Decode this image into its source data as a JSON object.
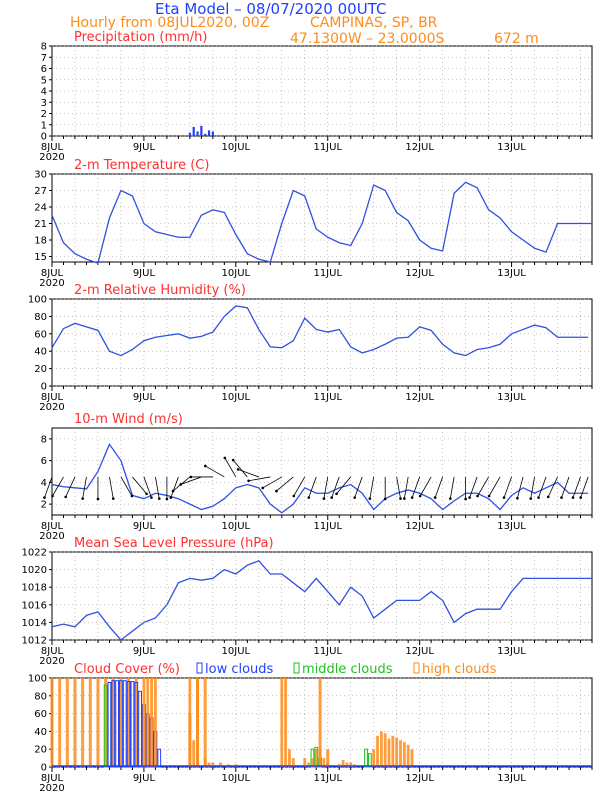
{
  "header": {
    "title": "Eta Model – 08/07/2020 00UTC",
    "subtitle": "Hourly from 08JUL2020, 00Z",
    "location": "CAMPINAS, SP, BR",
    "coords": "47.1300W – 23.0000S",
    "elevation": "672  m"
  },
  "colors": {
    "line": "#3050e0",
    "title": "#ff3030",
    "high": "#ff8c1a",
    "middle": "#20c020",
    "low": "#2040ff",
    "arrow": "#000000"
  },
  "chart_data": [
    {
      "type": "bar",
      "title": "Precipitation (mm/h)",
      "ylim": [
        0,
        8
      ],
      "yticks": [
        0,
        1,
        2,
        3,
        4,
        5,
        6,
        7,
        8
      ],
      "x_day_labels": [
        "8JUL",
        "9JUL",
        "10JUL",
        "11JUL",
        "12JUL",
        "13JUL"
      ],
      "x_year": "2020",
      "x": [
        36,
        37,
        38,
        39,
        40,
        41,
        42
      ],
      "values": [
        0.3,
        0.8,
        0.4,
        0.9,
        0.2,
        0.5,
        0.4
      ]
    },
    {
      "type": "line",
      "title": "2-m Temperature (C)",
      "ylim": [
        14,
        30
      ],
      "yticks": [
        15,
        18,
        21,
        24,
        27,
        30
      ],
      "x_day_labels": [
        "8JUL",
        "9JUL",
        "10JUL",
        "11JUL",
        "12JUL",
        "13JUL"
      ],
      "x_year": "2020",
      "x": [
        0,
        3,
        6,
        9,
        12,
        15,
        18,
        21,
        24,
        27,
        30,
        33,
        36,
        39,
        42,
        45,
        48,
        51,
        54,
        57,
        60,
        63,
        66,
        69,
        72,
        75,
        78,
        81,
        84,
        87,
        90,
        93,
        96,
        99,
        102,
        105,
        108,
        111,
        114,
        117,
        120,
        123,
        126,
        129,
        132,
        135,
        138,
        141
      ],
      "values": [
        22.5,
        17.5,
        15.5,
        14.5,
        13.8,
        22.0,
        27.0,
        26.0,
        21.0,
        19.5,
        19.0,
        18.5,
        18.5,
        22.5,
        23.5,
        23.0,
        19.0,
        15.5,
        14.5,
        14.0,
        21.0,
        27.0,
        26.0,
        20.0,
        18.5,
        17.5,
        17.0,
        21.0,
        28.0,
        27.0,
        23.0,
        21.5,
        18.0,
        16.5,
        16.0,
        26.5,
        28.5,
        27.5,
        23.5,
        22.0,
        19.5,
        18.0,
        16.5,
        15.8,
        21.0,
        21.0,
        21.0,
        21.0
      ]
    },
    {
      "type": "line",
      "title": "2-m Relative Humidity (%)",
      "ylim": [
        0,
        100
      ],
      "yticks": [
        0,
        20,
        40,
        60,
        80,
        100
      ],
      "x_day_labels": [
        "8JUL",
        "9JUL",
        "10JUL",
        "11JUL",
        "12JUL",
        "13JUL"
      ],
      "x_year": "2020",
      "x": [
        0,
        3,
        6,
        9,
        12,
        15,
        18,
        21,
        24,
        27,
        30,
        33,
        36,
        39,
        42,
        45,
        48,
        51,
        54,
        57,
        60,
        63,
        66,
        69,
        72,
        75,
        78,
        81,
        84,
        87,
        90,
        93,
        96,
        99,
        102,
        105,
        108,
        111,
        114,
        117,
        120,
        123,
        126,
        129,
        132,
        135,
        138,
        140
      ],
      "values": [
        44,
        66,
        72,
        68,
        64,
        40,
        35,
        42,
        52,
        56,
        58,
        60,
        55,
        57,
        62,
        80,
        92,
        90,
        65,
        45,
        44,
        52,
        78,
        65,
        62,
        65,
        45,
        38,
        42,
        48,
        55,
        56,
        68,
        64,
        48,
        38,
        35,
        42,
        44,
        48,
        60,
        65,
        70,
        67,
        56,
        56,
        56,
        56
      ]
    },
    {
      "type": "line",
      "title": "10-m Wind (m/s)",
      "ylim": [
        1,
        9
      ],
      "yticks": [
        2,
        4,
        6,
        8
      ],
      "x_day_labels": [
        "8JUL",
        "9JUL",
        "10JUL",
        "11JUL",
        "12JUL",
        "13JUL"
      ],
      "x_year": "2020",
      "x": [
        0,
        3,
        6,
        9,
        12,
        15,
        18,
        21,
        24,
        27,
        30,
        33,
        36,
        39,
        42,
        45,
        48,
        51,
        54,
        57,
        60,
        63,
        66,
        69,
        72,
        75,
        78,
        81,
        84,
        87,
        90,
        93,
        96,
        99,
        102,
        105,
        108,
        111,
        114,
        117,
        120,
        123,
        126,
        129,
        132,
        135,
        138,
        140
      ],
      "values": [
        3.8,
        3.6,
        3.5,
        3.4,
        5.0,
        7.5,
        6.0,
        2.8,
        2.5,
        3.0,
        2.8,
        2.5,
        2.0,
        1.5,
        1.8,
        2.5,
        3.5,
        3.8,
        3.5,
        2.0,
        1.2,
        2.0,
        3.5,
        3.0,
        3.0,
        3.5,
        3.8,
        3.0,
        1.5,
        2.5,
        3.0,
        3.3,
        3.0,
        2.5,
        1.5,
        2.3,
        3.0,
        3.0,
        2.5,
        1.5,
        2.8,
        3.5,
        3.0,
        3.5,
        4.0,
        3.0,
        3.0,
        3.0
      ],
      "arrow_directions_deg": [
        200,
        210,
        205,
        190,
        180,
        170,
        150,
        140,
        160,
        170,
        180,
        200,
        230,
        250,
        270,
        300,
        330,
        320,
        290,
        260,
        240,
        230,
        210,
        200,
        190,
        200,
        220,
        200,
        190,
        180,
        170,
        190,
        200,
        210,
        200,
        190,
        180,
        200,
        210,
        210,
        200,
        195,
        190,
        200,
        205,
        200,
        200,
        200
      ]
    },
    {
      "type": "line",
      "title": "Mean Sea Level Pressure (hPa)",
      "ylim": [
        1012,
        1022
      ],
      "yticks": [
        1012,
        1014,
        1016,
        1018,
        1020,
        1022
      ],
      "x_day_labels": [
        "8JUL",
        "9JUL",
        "10JUL",
        "11JUL",
        "12JUL",
        "13JUL"
      ],
      "x_year": "2020",
      "x": [
        0,
        3,
        6,
        9,
        12,
        15,
        18,
        21,
        24,
        27,
        30,
        33,
        36,
        39,
        42,
        45,
        48,
        51,
        54,
        57,
        60,
        63,
        66,
        69,
        72,
        75,
        78,
        81,
        84,
        87,
        90,
        93,
        96,
        99,
        102,
        105,
        108,
        111,
        114,
        117,
        120,
        123,
        126,
        129,
        132,
        135,
        138,
        141
      ],
      "values": [
        1013.5,
        1013.8,
        1013.5,
        1014.8,
        1015.2,
        1013.5,
        1012.0,
        1013.0,
        1014.0,
        1014.5,
        1016.0,
        1018.5,
        1019.0,
        1018.8,
        1019.0,
        1020.0,
        1019.5,
        1020.5,
        1021.0,
        1019.5,
        1019.5,
        1018.5,
        1017.5,
        1019.0,
        1017.5,
        1016.0,
        1018.0,
        1017.0,
        1014.5,
        1015.5,
        1016.5,
        1016.5,
        1016.5,
        1017.5,
        1016.5,
        1014.0,
        1015.0,
        1015.5,
        1015.5,
        1015.5,
        1017.5,
        1019.0,
        1019.0,
        1019.0,
        1019.0,
        1019.0,
        1019.0,
        1019.0
      ]
    },
    {
      "type": "bar",
      "title": "Cloud Cover (%)",
      "legend": [
        "low clouds",
        "middle clouds",
        "high clouds"
      ],
      "ylim": [
        0,
        100
      ],
      "yticks": [
        0,
        20,
        40,
        60,
        80,
        100
      ],
      "x_day_labels": [
        "8JUL",
        "9JUL",
        "10JUL",
        "11JUL",
        "12JUL",
        "13JUL"
      ],
      "x_year": "2020",
      "x": [
        0,
        2,
        4,
        6,
        8,
        10,
        12,
        14,
        16,
        18,
        20,
        22,
        24,
        26,
        28,
        30,
        32,
        34,
        36,
        38,
        40,
        42,
        44,
        46,
        48,
        50,
        52,
        54,
        56,
        58,
        60,
        62,
        64,
        66,
        68,
        70,
        72,
        74,
        76,
        78,
        80,
        82,
        84,
        86,
        88,
        90,
        92,
        94,
        96,
        98,
        100,
        102,
        104,
        106,
        108,
        110,
        112,
        114,
        116,
        118,
        120,
        122,
        124,
        126,
        128,
        130,
        132,
        134,
        136,
        138,
        140
      ],
      "series": [
        {
          "name": "high clouds",
          "values": [
            100,
            100,
            100,
            100,
            100,
            100,
            100,
            100,
            100,
            100,
            100,
            100,
            0,
            0,
            0,
            0,
            0,
            0,
            60,
            100,
            100,
            0,
            0,
            0,
            0,
            0,
            0,
            0,
            0,
            0,
            0,
            0,
            0,
            0,
            0,
            100,
            20,
            0,
            0,
            0,
            0,
            0,
            0,
            0,
            0,
            0,
            0,
            0,
            0,
            0,
            0,
            0,
            0,
            0,
            0,
            0,
            0,
            0,
            0,
            0,
            0,
            0,
            0,
            0,
            0,
            0,
            0,
            0,
            0,
            0,
            0
          ]
        },
        {
          "name": "middle clouds",
          "values": [
            0,
            0,
            0,
            0,
            0,
            0,
            0,
            0,
            0,
            0,
            0,
            0,
            0,
            0,
            0,
            0,
            0,
            0,
            0,
            0,
            0,
            0,
            0,
            0,
            0,
            0,
            0,
            0,
            0,
            0,
            0,
            0,
            0,
            0,
            0,
            0,
            0,
            0,
            0,
            0,
            0,
            0,
            0,
            0,
            0,
            0,
            0,
            0,
            0,
            0,
            0,
            0,
            0,
            0,
            0,
            0,
            0,
            0,
            0,
            0,
            0,
            0,
            0,
            0,
            0,
            0,
            0,
            0,
            0,
            0,
            0
          ]
        },
        {
          "name": "low clouds",
          "values": [
            0,
            0,
            0,
            0,
            0,
            0,
            0,
            0,
            0,
            0,
            0,
            0,
            0,
            0,
            0,
            0,
            0,
            0,
            0,
            0,
            0,
            0,
            0,
            0,
            0,
            0,
            0,
            0,
            0,
            0,
            0,
            0,
            0,
            0,
            0,
            0,
            0,
            0,
            0,
            0,
            0,
            0,
            0,
            0,
            0,
            0,
            0,
            0,
            0,
            0,
            0,
            0,
            0,
            0,
            0,
            0,
            0,
            0,
            0,
            0,
            0,
            0,
            0,
            0,
            0,
            0,
            0,
            0,
            0,
            0,
            0
          ]
        }
      ],
      "overlay_bars": [
        {
          "name": "middle clouds",
          "x": [
            14,
            15
          ],
          "values": [
            92,
            95
          ]
        },
        {
          "name": "low clouds",
          "x": [
            15,
            16,
            17,
            18,
            19,
            20,
            21,
            22,
            23,
            24,
            25,
            26,
            27,
            28
          ],
          "values": [
            95,
            97,
            97,
            97,
            97,
            96,
            96,
            95,
            85,
            70,
            60,
            55,
            40,
            20
          ]
        },
        {
          "name": "high clouds",
          "x": [
            24,
            25,
            26,
            27
          ],
          "values": [
            100,
            100,
            100,
            100
          ]
        },
        {
          "name": "high clouds",
          "x": [
            36,
            37,
            38,
            40,
            41,
            42,
            44,
            46,
            48
          ],
          "values": [
            100,
            30,
            100,
            10,
            5,
            5,
            5,
            3,
            3
          ]
        },
        {
          "name": "high clouds",
          "x": [
            60,
            61,
            62,
            63
          ],
          "values": [
            100,
            100,
            20,
            10
          ]
        },
        {
          "name": "middle clouds",
          "x": [
            68,
            69,
            70
          ],
          "values": [
            20,
            22,
            10
          ]
        },
        {
          "name": "high clouds",
          "x": [
            66,
            67,
            68,
            69,
            70,
            71,
            72,
            75,
            76,
            77,
            78,
            79
          ],
          "values": [
            10,
            5,
            10,
            20,
            20,
            10,
            5,
            3,
            8,
            5,
            5,
            3
          ]
        },
        {
          "name": "middle clouds",
          "x": [
            82,
            83
          ],
          "values": [
            20,
            15
          ]
        },
        {
          "name": "high clouds",
          "x": [
            84,
            85,
            86,
            87,
            88,
            89,
            90,
            91,
            92,
            93,
            94
          ],
          "values": [
            20,
            35,
            40,
            38,
            32,
            35,
            33,
            30,
            28,
            25,
            20
          ]
        }
      ]
    }
  ]
}
